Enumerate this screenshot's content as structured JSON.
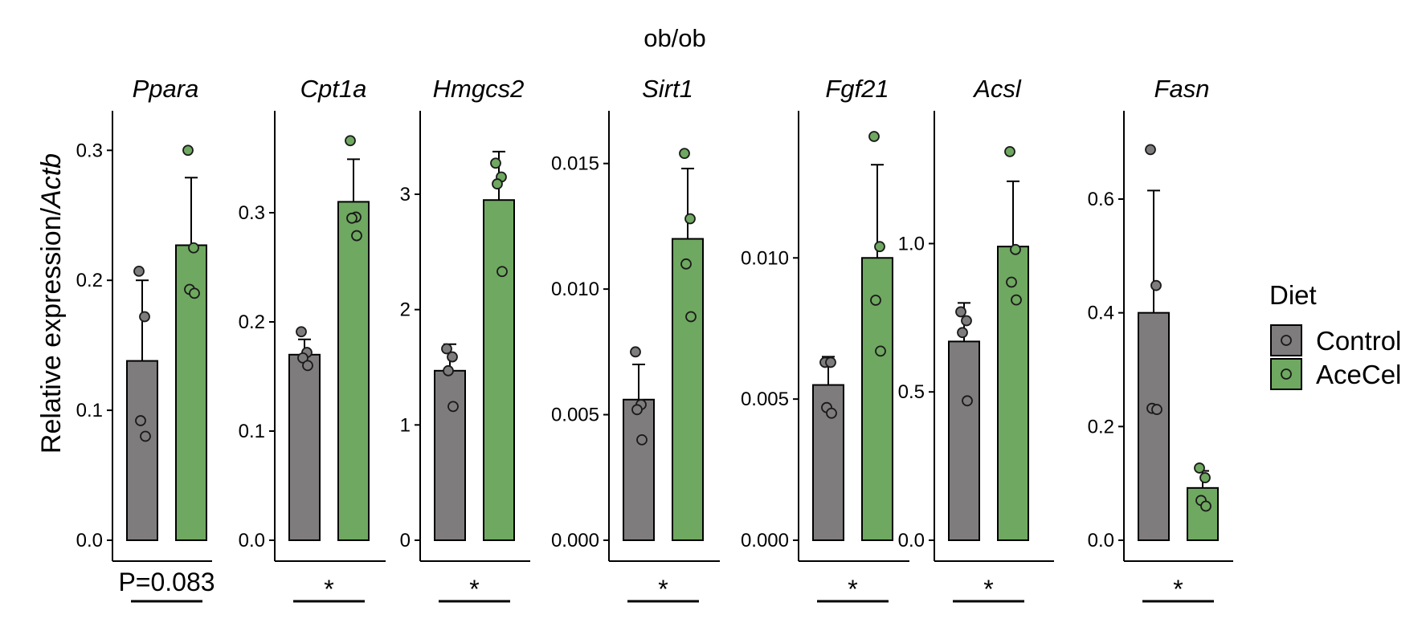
{
  "chart_data": {
    "type": "bar",
    "title": "ob/ob",
    "ylabel_prefix": "Relative expression/",
    "ylabel_italic": "Actb",
    "series_names": [
      "Control",
      "AceCel"
    ],
    "colors": {
      "Control": "#7f7c7e",
      "AceCel": "#6fa860",
      "point_outline": "#1a1a1a"
    },
    "legend": {
      "title": "Diet",
      "entries": [
        "Control",
        "AceCel"
      ],
      "placement": "right"
    },
    "panels": [
      {
        "gene": "Ppara",
        "ylim": [
          0,
          0.315
        ],
        "ticks": [
          0,
          0.1,
          0.2,
          0.3
        ],
        "tick_labels": [
          "0.0",
          "0.1",
          "0.2",
          "0.3"
        ],
        "bars": [
          {
            "group": "Control",
            "value": 0.138,
            "error": 0.062,
            "points": [
              0.207,
              0.172,
              0.092,
              0.08
            ]
          },
          {
            "group": "AceCel",
            "value": 0.227,
            "error": 0.052,
            "points": [
              0.3,
              0.225,
              0.193,
              0.19
            ]
          }
        ],
        "significance": "P=0.083"
      },
      {
        "gene": "Cpt1a",
        "ylim": [
          0,
          0.375
        ],
        "ticks": [
          0,
          0.1,
          0.2,
          0.3
        ],
        "tick_labels": [
          "0.0",
          "0.1",
          "0.2",
          "0.3"
        ],
        "bars": [
          {
            "group": "Control",
            "value": 0.17,
            "error": 0.014,
            "points": [
              0.191,
              0.172,
              0.167,
              0.16
            ]
          },
          {
            "group": "AceCel",
            "value": 0.31,
            "error": 0.039,
            "points": [
              0.366,
              0.296,
              0.295,
              0.279
            ]
          }
        ],
        "significance": "*"
      },
      {
        "gene": "Hmgcs2",
        "ylim": [
          0,
          3.55
        ],
        "ticks": [
          0,
          1,
          2,
          3
        ],
        "tick_labels": [
          "0",
          "1",
          "2",
          "3"
        ],
        "bars": [
          {
            "group": "Control",
            "value": 1.47,
            "error": 0.23,
            "points": [
              1.66,
              1.59,
              1.47,
              1.16
            ]
          },
          {
            "group": "AceCel",
            "value": 2.95,
            "error": 0.42,
            "points": [
              3.27,
              3.15,
              3.09,
              2.33
            ]
          }
        ],
        "significance": "*"
      },
      {
        "gene": "Sirt1",
        "ylim": [
          0,
          0.0163
        ],
        "ticks": [
          0,
          0.005,
          0.01,
          0.015
        ],
        "tick_labels": [
          "0.000",
          "0.005",
          "0.010",
          "0.015"
        ],
        "bars": [
          {
            "group": "Control",
            "value": 0.0056,
            "error": 0.0014,
            "points": [
              0.0075,
              0.0054,
              0.0052,
              0.004
            ]
          },
          {
            "group": "AceCel",
            "value": 0.012,
            "error": 0.0028,
            "points": [
              0.0154,
              0.0128,
              0.011,
              0.0089
            ]
          }
        ],
        "significance": "*"
      },
      {
        "gene": "Fgf21",
        "ylim": [
          0,
          0.0145
        ],
        "ticks": [
          0,
          0.005,
          0.01
        ],
        "tick_labels": [
          "0.000",
          "0.005",
          "0.010"
        ],
        "bars": [
          {
            "group": "Control",
            "value": 0.0055,
            "error": 0.001,
            "points": [
              0.0063,
              0.0063,
              0.0047,
              0.0045
            ]
          },
          {
            "group": "AceCel",
            "value": 0.01,
            "error": 0.0033,
            "points": [
              0.0143,
              0.0104,
              0.0085,
              0.0067
            ]
          }
        ],
        "significance": "*"
      },
      {
        "gene": "Acsl",
        "ylim": [
          0,
          1.38
        ],
        "ticks": [
          0,
          0.5,
          1.0
        ],
        "tick_labels": [
          "0.0",
          "0.5",
          "1.0"
        ],
        "bars": [
          {
            "group": "Control",
            "value": 0.67,
            "error": 0.13,
            "points": [
              0.77,
              0.74,
              0.7,
              0.47
            ]
          },
          {
            "group": "AceCel",
            "value": 0.99,
            "error": 0.22,
            "points": [
              1.31,
              0.98,
              0.87,
              0.81
            ]
          }
        ],
        "significance": "*"
      },
      {
        "gene": "Fasn",
        "ylim": [
          0,
          0.72
        ],
        "ticks": [
          0,
          0.2,
          0.4,
          0.6
        ],
        "tick_labels": [
          "0.0",
          "0.2",
          "0.4",
          "0.6"
        ],
        "bars": [
          {
            "group": "Control",
            "value": 0.4,
            "error": 0.215,
            "points": [
              0.687,
              0.448,
              0.232,
              0.23
            ]
          },
          {
            "group": "AceCel",
            "value": 0.092,
            "error": 0.03,
            "points": [
              0.127,
              0.11,
              0.07,
              0.06
            ]
          }
        ],
        "significance": "*"
      }
    ]
  }
}
